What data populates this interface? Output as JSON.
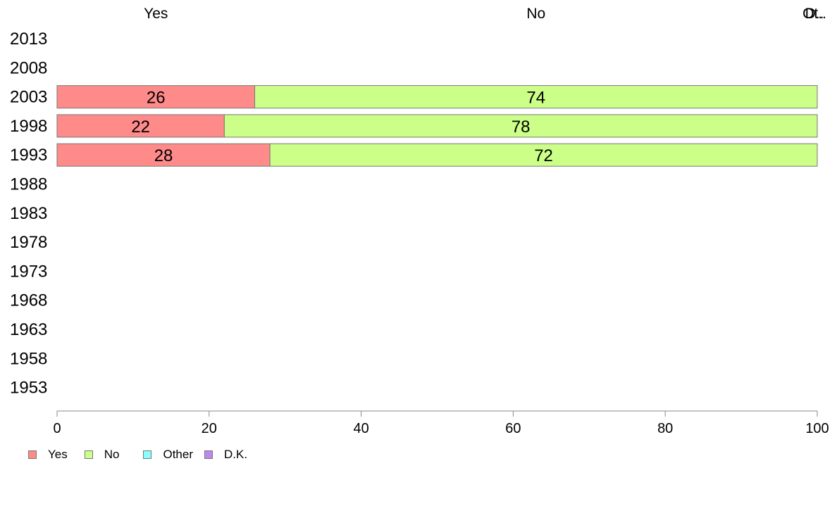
{
  "chart_data": {
    "type": "bar",
    "orientation": "horizontal",
    "stacked": true,
    "categories": [
      "2013",
      "2008",
      "2003",
      "1998",
      "1993",
      "1988",
      "1983",
      "1978",
      "1973",
      "1968",
      "1963",
      "1958",
      "1953"
    ],
    "series": [
      {
        "name": "Yes",
        "color": "#ff8a8a",
        "values": [
          null,
          null,
          26,
          22,
          28,
          null,
          null,
          null,
          null,
          null,
          null,
          null,
          null
        ]
      },
      {
        "name": "No",
        "color": "#ccff88",
        "values": [
          null,
          null,
          74,
          78,
          72,
          null,
          null,
          null,
          null,
          null,
          null,
          null,
          null
        ]
      },
      {
        "name": "Other",
        "color": "#88ffff",
        "values": [
          null,
          null,
          0,
          0,
          0,
          null,
          null,
          null,
          null,
          null,
          null,
          null,
          null
        ]
      },
      {
        "name": "D.K.",
        "color": "#bb88ee",
        "values": [
          null,
          null,
          0,
          0,
          0,
          null,
          null,
          null,
          null,
          null,
          null,
          null,
          null
        ]
      }
    ],
    "top_labels": [
      "Yes",
      "No",
      "Ot..",
      "D.."
    ],
    "xlim": [
      0,
      100
    ],
    "xticks": [
      0,
      20,
      40,
      60,
      80,
      100
    ],
    "legend_position": "bottom-left",
    "grid": false
  }
}
